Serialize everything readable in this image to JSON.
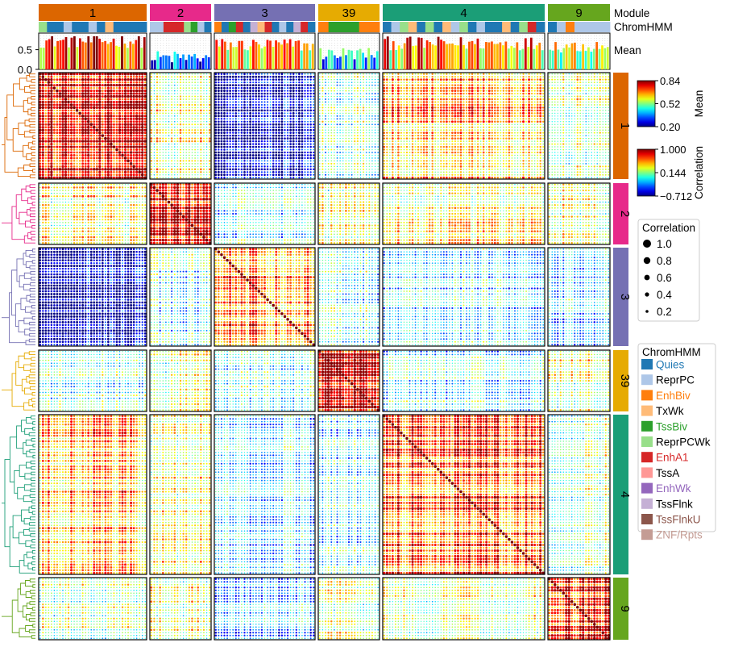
{
  "chart_data": {
    "type": "heatmap",
    "annotation_labels": {
      "module": "Module",
      "chromhmm": "ChromHMM",
      "mean": "Mean"
    },
    "mean_axis": {
      "ticks": [
        0.5,
        0.0
      ],
      "tick_labels": [
        "0.5",
        "0.0"
      ],
      "range": [
        0.0,
        0.84
      ]
    },
    "modules": [
      {
        "name": "1",
        "color": "#dc6600",
        "size": 38,
        "mean_level": 0.72,
        "chromhmm": [
          "ReprPCWk",
          "Quies",
          "Quies",
          "ReprPC",
          "Quies",
          "Quies",
          "ReprPC",
          "Quies",
          "TxWk",
          "Quies",
          "Quies",
          "Quies",
          "Quies"
        ]
      },
      {
        "name": "2",
        "color": "#e7298a",
        "size": 21,
        "mean_level": 0.3,
        "chromhmm": [
          "ReprPC",
          "ReprPC",
          "EnhA1",
          "EnhA1",
          "EnhA1",
          "ReprPCWk",
          "TssBiv",
          "ReprPC",
          "Quies"
        ]
      },
      {
        "name": "3",
        "color": "#7570b3",
        "size": 35,
        "mean_level": 0.62,
        "chromhmm": [
          "EnhBiv",
          "Quies",
          "TssBiv",
          "EnhA1",
          "Quies",
          "TssFlnk",
          "TxWk",
          "EnhA1",
          "Quies",
          "ReprPC",
          "Quies",
          "TssFlnk",
          "EnhA1",
          "Quies"
        ]
      },
      {
        "name": "39",
        "color": "#e6ab02",
        "size": 21,
        "mean_level": 0.4,
        "chromhmm": [
          "EnhBiv",
          "TssBiv",
          "TssBiv",
          "TssBiv",
          "EnhBiv",
          "EnhBiv"
        ]
      },
      {
        "name": "4",
        "color": "#1b9e77",
        "size": 57,
        "mean_level": 0.66,
        "chromhmm": [
          "Quies",
          "ReprPC",
          "ReprPCWk",
          "TxWk",
          "Quies",
          "ReprPCWk",
          "Quies",
          "TxWk",
          "ReprPC",
          "ReprPCWk",
          "Quies",
          "ReprPC",
          "Quies",
          "Quies",
          "TxWk",
          "Quies",
          "ReprPCWk",
          "EnhA1",
          "Quies"
        ]
      },
      {
        "name": "9",
        "color": "#66a61e",
        "size": 22,
        "mean_level": 0.6,
        "chromhmm": [
          "Quies",
          "ReprPC",
          "EnhBiv",
          "ReprPC",
          "ReprPC",
          "ReprPC",
          "ReprPC"
        ]
      }
    ],
    "correlation_matrix_module_means": [
      [
        0.78,
        0.25,
        -0.55,
        0.05,
        0.45,
        0.15
      ],
      [
        0.25,
        0.7,
        -0.05,
        0.2,
        0.25,
        0.22
      ],
      [
        -0.55,
        -0.05,
        0.55,
        0.0,
        -0.1,
        -0.15
      ],
      [
        0.05,
        0.2,
        0.0,
        0.85,
        -0.05,
        0.2
      ],
      [
        0.45,
        0.25,
        -0.1,
        -0.05,
        0.6,
        0.15
      ],
      [
        0.15,
        0.22,
        -0.15,
        0.2,
        0.15,
        0.7
      ]
    ],
    "mean_colorbar": {
      "title": "Mean",
      "ticks": [
        "0.84",
        "0.52",
        "0.20"
      ],
      "min": 0.2,
      "max": 0.84
    },
    "correlation_colorbar": {
      "title": "Correlation",
      "ticks": [
        "1.000",
        "0.144",
        "−0.712"
      ],
      "min": -0.712,
      "max": 1.0
    },
    "size_legend": {
      "title": "Correlation",
      "entries": [
        1.0,
        0.8,
        0.6,
        0.4,
        0.2
      ],
      "labels": [
        "1.0",
        "0.8",
        "0.6",
        "0.4",
        "0.2"
      ]
    },
    "chromhmm_legend": {
      "title": "ChromHMM",
      "entries": [
        {
          "name": "Quies",
          "color": "#1f78b4",
          "text_color": "#1f78b4"
        },
        {
          "name": "ReprPC",
          "color": "#aec7e8",
          "text_color": "#000000"
        },
        {
          "name": "EnhBiv",
          "color": "#ff7f0e",
          "text_color": "#ff7f0e"
        },
        {
          "name": "TxWk",
          "color": "#ffbb78",
          "text_color": "#000000"
        },
        {
          "name": "TssBiv",
          "color": "#2ca02c",
          "text_color": "#2ca02c"
        },
        {
          "name": "ReprPCWk",
          "color": "#98df8a",
          "text_color": "#000000"
        },
        {
          "name": "EnhA1",
          "color": "#d62728",
          "text_color": "#d62728"
        },
        {
          "name": "TssA",
          "color": "#ff9896",
          "text_color": "#000000"
        },
        {
          "name": "EnhWk",
          "color": "#9467bd",
          "text_color": "#9467bd"
        },
        {
          "name": "TssFlnk",
          "color": "#c5b0d5",
          "text_color": "#000000"
        },
        {
          "name": "TssFlnkU",
          "color": "#8c564b",
          "text_color": "#8c564b"
        },
        {
          "name": "ZNF/Rpts",
          "color": "#c49c94",
          "text_color": "#c49c94"
        }
      ]
    }
  }
}
